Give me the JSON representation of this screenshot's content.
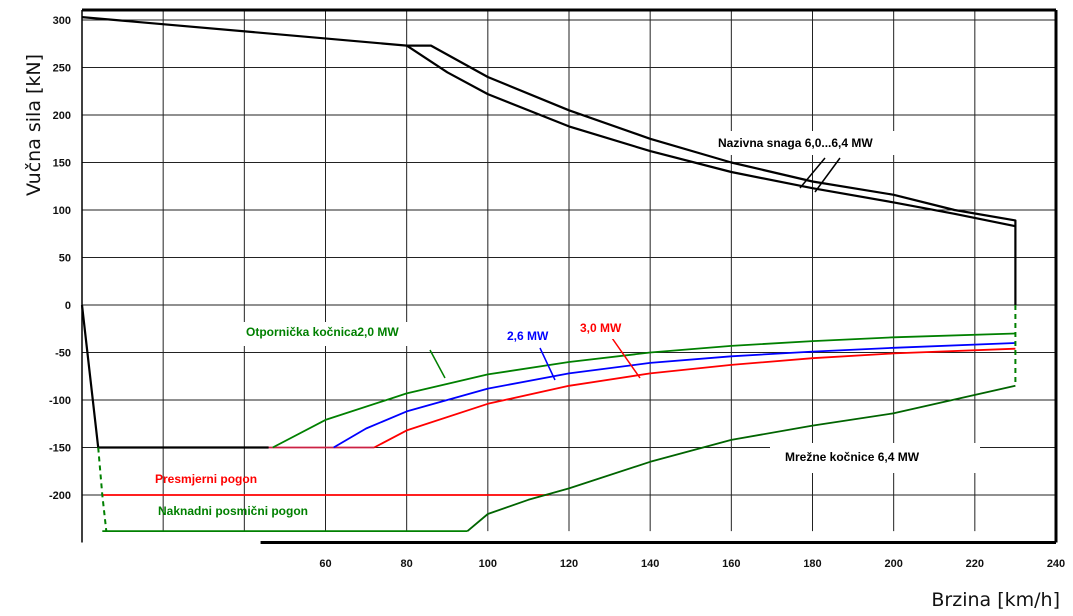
{
  "chart_data": {
    "type": "line",
    "title": "",
    "xlabel": "Brzina [km/h]",
    "ylabel": "Vučna sila [kN]",
    "xlim": [
      0,
      240
    ],
    "ylim": [
      -250,
      310
    ],
    "x_ticks": [
      60,
      80,
      100,
      120,
      140,
      160,
      180,
      200,
      220,
      240
    ],
    "y_ticks": [
      300,
      250,
      200,
      150,
      100,
      50,
      0,
      -50,
      -100,
      -150,
      -200
    ],
    "grid": true,
    "series": [
      {
        "color": "#000000",
        "x": [
          0,
          80,
          86,
          100,
          120,
          140,
          160,
          180,
          200,
          215,
          230,
          230
        ],
        "y": [
          303,
          273,
          273,
          240,
          205,
          175,
          150,
          130,
          116,
          100,
          89,
          0
        ]
      },
      {
        "color": "#000000",
        "x": [
          80,
          90,
          100,
          120,
          140,
          160,
          180,
          200,
          215,
          230
        ],
        "y": [
          273,
          245,
          222,
          188,
          162,
          140,
          123,
          108,
          96,
          83
        ]
      },
      {
        "color": "#000000",
        "x": [
          0,
          4,
          46
        ],
        "y": [
          0,
          -150,
          -150
        ]
      },
      {
        "color": "#cc2244",
        "x": [
          46,
          72
        ],
        "y": [
          -150,
          -150
        ]
      },
      {
        "color": "#008000",
        "x": [
          47,
          60,
          80,
          100,
          120,
          140,
          160,
          180,
          200,
          230
        ],
        "y": [
          -150,
          -121,
          -93,
          -73,
          -60,
          -50,
          -43,
          -38,
          -34,
          -30
        ]
      },
      {
        "color": "#0000ff",
        "x": [
          62,
          70,
          80,
          100,
          120,
          140,
          160,
          180,
          200,
          230
        ],
        "y": [
          -150,
          -130,
          -112,
          -88,
          -72,
          -61,
          -54,
          -49,
          -45,
          -40
        ]
      },
      {
        "color": "#ff0000",
        "x": [
          72,
          80,
          100,
          120,
          140,
          160,
          180,
          200,
          230
        ],
        "y": [
          -150,
          -132,
          -104,
          -85,
          -72,
          -63,
          -56,
          -51,
          -46
        ]
      },
      {
        "color": "#ff0000",
        "x": [
          5,
          115
        ],
        "y": [
          -200,
          -200
        ]
      },
      {
        "color": "#008000",
        "x": [
          5,
          95
        ],
        "y": [
          -238,
          -238
        ]
      },
      {
        "color": "#006400",
        "x": [
          95,
          100,
          110,
          120,
          140,
          160,
          180,
          200,
          230
        ],
        "y": [
          -238,
          -220,
          -205,
          -193,
          -165,
          -142,
          -127,
          -114,
          -85
        ]
      }
    ],
    "dashed_segments": [
      {
        "color": "#008000",
        "x": [
          4,
          5,
          6
        ],
        "y": [
          -150,
          -200,
          -238
        ]
      },
      {
        "color": "#008000",
        "x": [
          230,
          230
        ],
        "y": [
          0,
          -85
        ]
      }
    ],
    "annotations": [
      {
        "text": "Nazivna snaga 6,0...6,4 MW",
        "color": "#000000"
      },
      {
        "text": "Otpornička kočnica2,0 MW",
        "color": "#008000"
      },
      {
        "text": "2,6 MW",
        "color": "#0000ff"
      },
      {
        "text": "3,0 MW",
        "color": "#ff0000"
      },
      {
        "text": "Mrežne kočnice 6,4 MW",
        "color": "#000000"
      },
      {
        "text": "Presmjerni pogon",
        "color": "#ff0000"
      },
      {
        "text": "Naknadni posmični pogon",
        "color": "#008000"
      }
    ]
  }
}
